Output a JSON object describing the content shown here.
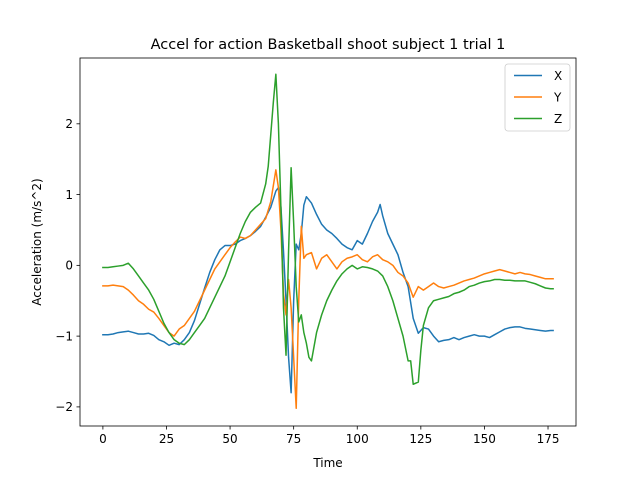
{
  "chart_data": {
    "type": "line",
    "title": "Accel for action Basketball shoot subject 1 trial 1",
    "xlabel": "Time",
    "ylabel": "Acceleration (m/s^2)",
    "xlim": [
      -9,
      186
    ],
    "ylim": [
      -2.27,
      2.93
    ],
    "xticks": [
      0,
      25,
      50,
      75,
      100,
      125,
      150,
      175
    ],
    "yticks": [
      -2,
      -1,
      0,
      1,
      2
    ],
    "ytick_labels": [
      "−2",
      "−1",
      "0",
      "1",
      "2"
    ],
    "grid": false,
    "legend": "top-right",
    "series": [
      {
        "name": "X",
        "color": "#1f77b4",
        "points": [
          [
            0,
            -0.98
          ],
          [
            2,
            -0.98
          ],
          [
            4,
            -0.97
          ],
          [
            6,
            -0.95
          ],
          [
            8,
            -0.94
          ],
          [
            10,
            -0.93
          ],
          [
            12,
            -0.95
          ],
          [
            14,
            -0.97
          ],
          [
            16,
            -0.97
          ],
          [
            18,
            -0.96
          ],
          [
            20,
            -0.99
          ],
          [
            22,
            -1.05
          ],
          [
            24,
            -1.08
          ],
          [
            26,
            -1.13
          ],
          [
            28,
            -1.1
          ],
          [
            30,
            -1.12
          ],
          [
            32,
            -1.05
          ],
          [
            34,
            -0.95
          ],
          [
            36,
            -0.78
          ],
          [
            38,
            -0.55
          ],
          [
            40,
            -0.32
          ],
          [
            42,
            -0.1
          ],
          [
            44,
            0.08
          ],
          [
            46,
            0.22
          ],
          [
            48,
            0.28
          ],
          [
            50,
            0.28
          ],
          [
            52,
            0.3
          ],
          [
            54,
            0.35
          ],
          [
            56,
            0.38
          ],
          [
            58,
            0.42
          ],
          [
            60,
            0.48
          ],
          [
            62,
            0.55
          ],
          [
            64,
            0.68
          ],
          [
            66,
            0.82
          ],
          [
            68,
            1.05
          ],
          [
            69,
            1.1
          ],
          [
            70,
            0.82
          ],
          [
            71,
            0.2
          ],
          [
            72,
            -0.5
          ],
          [
            73,
            -1.3
          ],
          [
            74,
            -1.8
          ],
          [
            75,
            -0.5
          ],
          [
            76,
            0.3
          ],
          [
            77,
            0.22
          ],
          [
            78,
            0.45
          ],
          [
            79,
            0.85
          ],
          [
            80,
            0.97
          ],
          [
            82,
            0.88
          ],
          [
            84,
            0.72
          ],
          [
            86,
            0.58
          ],
          [
            88,
            0.5
          ],
          [
            90,
            0.45
          ],
          [
            92,
            0.38
          ],
          [
            94,
            0.3
          ],
          [
            96,
            0.25
          ],
          [
            98,
            0.22
          ],
          [
            100,
            0.35
          ],
          [
            102,
            0.3
          ],
          [
            104,
            0.45
          ],
          [
            106,
            0.62
          ],
          [
            108,
            0.75
          ],
          [
            109,
            0.86
          ],
          [
            110,
            0.7
          ],
          [
            112,
            0.45
          ],
          [
            114,
            0.3
          ],
          [
            116,
            0.15
          ],
          [
            118,
            -0.1
          ],
          [
            120,
            -0.3
          ],
          [
            122,
            -0.75
          ],
          [
            124,
            -0.96
          ],
          [
            126,
            -0.88
          ],
          [
            128,
            -0.9
          ],
          [
            130,
            -1.0
          ],
          [
            132,
            -1.08
          ],
          [
            134,
            -1.06
          ],
          [
            136,
            -1.05
          ],
          [
            138,
            -1.02
          ],
          [
            140,
            -1.05
          ],
          [
            142,
            -1.02
          ],
          [
            144,
            -1.0
          ],
          [
            146,
            -0.98
          ],
          [
            148,
            -1.0
          ],
          [
            150,
            -1.0
          ],
          [
            152,
            -1.02
          ],
          [
            154,
            -0.98
          ],
          [
            156,
            -0.94
          ],
          [
            158,
            -0.9
          ],
          [
            160,
            -0.88
          ],
          [
            162,
            -0.87
          ],
          [
            164,
            -0.87
          ],
          [
            166,
            -0.89
          ],
          [
            168,
            -0.9
          ],
          [
            170,
            -0.91
          ],
          [
            172,
            -0.92
          ],
          [
            174,
            -0.93
          ],
          [
            176,
            -0.92
          ],
          [
            177,
            -0.92
          ]
        ]
      },
      {
        "name": "Y",
        "color": "#ff7f0e",
        "points": [
          [
            0,
            -0.29
          ],
          [
            2,
            -0.29
          ],
          [
            4,
            -0.28
          ],
          [
            6,
            -0.29
          ],
          [
            8,
            -0.3
          ],
          [
            10,
            -0.35
          ],
          [
            12,
            -0.42
          ],
          [
            14,
            -0.5
          ],
          [
            16,
            -0.55
          ],
          [
            18,
            -0.62
          ],
          [
            20,
            -0.66
          ],
          [
            22,
            -0.75
          ],
          [
            24,
            -0.85
          ],
          [
            26,
            -0.95
          ],
          [
            28,
            -1.0
          ],
          [
            30,
            -0.9
          ],
          [
            32,
            -0.85
          ],
          [
            34,
            -0.75
          ],
          [
            36,
            -0.65
          ],
          [
            38,
            -0.5
          ],
          [
            40,
            -0.35
          ],
          [
            42,
            -0.2
          ],
          [
            44,
            -0.05
          ],
          [
            46,
            0.05
          ],
          [
            48,
            0.15
          ],
          [
            50,
            0.25
          ],
          [
            52,
            0.33
          ],
          [
            54,
            0.4
          ],
          [
            56,
            0.38
          ],
          [
            58,
            0.42
          ],
          [
            60,
            0.5
          ],
          [
            62,
            0.58
          ],
          [
            64,
            0.66
          ],
          [
            66,
            0.9
          ],
          [
            68,
            1.35
          ],
          [
            69,
            1.1
          ],
          [
            70,
            0.5
          ],
          [
            71,
            -0.4
          ],
          [
            72,
            -0.7
          ],
          [
            73,
            -0.2
          ],
          [
            74,
            -0.6
          ],
          [
            75,
            -1.3
          ],
          [
            76,
            -2.02
          ],
          [
            77,
            -0.5
          ],
          [
            78,
            0.55
          ],
          [
            79,
            0.1
          ],
          [
            80,
            0.15
          ],
          [
            82,
            0.18
          ],
          [
            84,
            -0.05
          ],
          [
            86,
            0.1
          ],
          [
            88,
            0.15
          ],
          [
            90,
            0.05
          ],
          [
            92,
            -0.05
          ],
          [
            94,
            0.05
          ],
          [
            96,
            0.1
          ],
          [
            98,
            0.12
          ],
          [
            100,
            0.15
          ],
          [
            102,
            0.08
          ],
          [
            104,
            0.05
          ],
          [
            106,
            0.12
          ],
          [
            108,
            0.15
          ],
          [
            110,
            0.08
          ],
          [
            112,
            0.05
          ],
          [
            114,
            0.0
          ],
          [
            116,
            -0.1
          ],
          [
            118,
            -0.15
          ],
          [
            120,
            -0.25
          ],
          [
            122,
            -0.45
          ],
          [
            124,
            -0.3
          ],
          [
            126,
            -0.35
          ],
          [
            128,
            -0.3
          ],
          [
            130,
            -0.25
          ],
          [
            132,
            -0.3
          ],
          [
            134,
            -0.32
          ],
          [
            136,
            -0.3
          ],
          [
            138,
            -0.28
          ],
          [
            140,
            -0.25
          ],
          [
            142,
            -0.22
          ],
          [
            144,
            -0.2
          ],
          [
            146,
            -0.18
          ],
          [
            148,
            -0.15
          ],
          [
            150,
            -0.12
          ],
          [
            152,
            -0.1
          ],
          [
            154,
            -0.08
          ],
          [
            156,
            -0.06
          ],
          [
            158,
            -0.08
          ],
          [
            160,
            -0.1
          ],
          [
            162,
            -0.12
          ],
          [
            164,
            -0.1
          ],
          [
            166,
            -0.12
          ],
          [
            168,
            -0.13
          ],
          [
            170,
            -0.15
          ],
          [
            172,
            -0.17
          ],
          [
            174,
            -0.19
          ],
          [
            176,
            -0.19
          ],
          [
            177,
            -0.19
          ]
        ]
      },
      {
        "name": "Z",
        "color": "#2ca02c",
        "points": [
          [
            0,
            -0.03
          ],
          [
            2,
            -0.03
          ],
          [
            4,
            -0.02
          ],
          [
            6,
            -0.01
          ],
          [
            8,
            0.0
          ],
          [
            10,
            0.03
          ],
          [
            12,
            -0.05
          ],
          [
            14,
            -0.15
          ],
          [
            16,
            -0.25
          ],
          [
            18,
            -0.35
          ],
          [
            20,
            -0.48
          ],
          [
            22,
            -0.65
          ],
          [
            24,
            -0.82
          ],
          [
            26,
            -0.95
          ],
          [
            28,
            -1.05
          ],
          [
            30,
            -1.1
          ],
          [
            32,
            -1.12
          ],
          [
            34,
            -1.05
          ],
          [
            36,
            -0.95
          ],
          [
            38,
            -0.85
          ],
          [
            40,
            -0.75
          ],
          [
            42,
            -0.6
          ],
          [
            44,
            -0.45
          ],
          [
            46,
            -0.3
          ],
          [
            48,
            -0.15
          ],
          [
            50,
            0.05
          ],
          [
            52,
            0.25
          ],
          [
            54,
            0.45
          ],
          [
            56,
            0.62
          ],
          [
            58,
            0.75
          ],
          [
            60,
            0.82
          ],
          [
            62,
            0.88
          ],
          [
            64,
            1.15
          ],
          [
            65,
            1.4
          ],
          [
            66,
            1.85
          ],
          [
            67,
            2.3
          ],
          [
            68,
            2.7
          ],
          [
            69,
            2.0
          ],
          [
            70,
            0.8
          ],
          [
            71,
            -0.6
          ],
          [
            72,
            -1.27
          ],
          [
            73,
            0.2
          ],
          [
            74,
            1.38
          ],
          [
            75,
            0.6
          ],
          [
            76,
            -0.3
          ],
          [
            77,
            -0.8
          ],
          [
            78,
            -0.7
          ],
          [
            79,
            -0.95
          ],
          [
            80,
            -1.1
          ],
          [
            81,
            -1.3
          ],
          [
            82,
            -1.35
          ],
          [
            84,
            -0.95
          ],
          [
            86,
            -0.7
          ],
          [
            88,
            -0.5
          ],
          [
            90,
            -0.35
          ],
          [
            92,
            -0.22
          ],
          [
            94,
            -0.12
          ],
          [
            96,
            -0.05
          ],
          [
            98,
            0.0
          ],
          [
            100,
            -0.05
          ],
          [
            102,
            -0.02
          ],
          [
            104,
            -0.03
          ],
          [
            106,
            -0.05
          ],
          [
            108,
            -0.08
          ],
          [
            110,
            -0.15
          ],
          [
            112,
            -0.3
          ],
          [
            114,
            -0.5
          ],
          [
            116,
            -0.75
          ],
          [
            118,
            -1.0
          ],
          [
            120,
            -1.35
          ],
          [
            121,
            -1.35
          ],
          [
            122,
            -1.68
          ],
          [
            124,
            -1.65
          ],
          [
            125,
            -1.2
          ],
          [
            126,
            -0.85
          ],
          [
            128,
            -0.6
          ],
          [
            130,
            -0.5
          ],
          [
            132,
            -0.48
          ],
          [
            134,
            -0.46
          ],
          [
            136,
            -0.44
          ],
          [
            138,
            -0.4
          ],
          [
            140,
            -0.38
          ],
          [
            142,
            -0.35
          ],
          [
            144,
            -0.3
          ],
          [
            146,
            -0.28
          ],
          [
            148,
            -0.25
          ],
          [
            150,
            -0.23
          ],
          [
            152,
            -0.22
          ],
          [
            154,
            -0.2
          ],
          [
            156,
            -0.2
          ],
          [
            158,
            -0.21
          ],
          [
            160,
            -0.21
          ],
          [
            162,
            -0.22
          ],
          [
            164,
            -0.22
          ],
          [
            166,
            -0.22
          ],
          [
            168,
            -0.24
          ],
          [
            170,
            -0.26
          ],
          [
            172,
            -0.29
          ],
          [
            174,
            -0.32
          ],
          [
            176,
            -0.33
          ],
          [
            177,
            -0.33
          ]
        ]
      }
    ]
  }
}
